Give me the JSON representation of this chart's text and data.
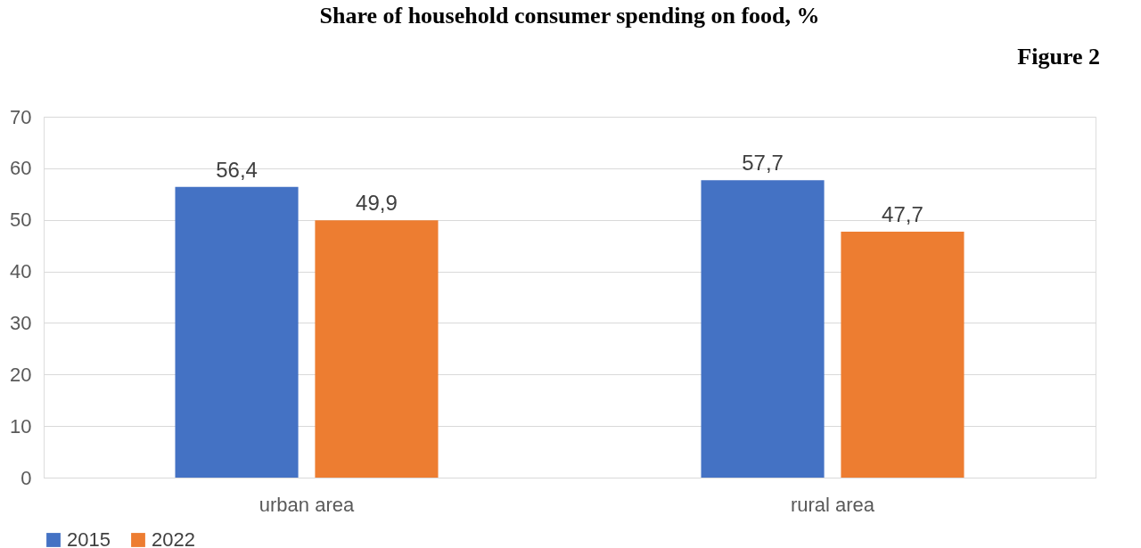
{
  "chart_data": {
    "type": "bar",
    "title": "Share of household consumer spending on food, %",
    "annotations": [
      "Figure 2"
    ],
    "categories": [
      "urban area",
      "rural area"
    ],
    "series": [
      {
        "name": "2015",
        "color": "#4472c4",
        "values": [
          56.4,
          57.7
        ],
        "value_labels": [
          "56,4",
          "57,7"
        ]
      },
      {
        "name": "2022",
        "color": "#ed7d31",
        "values": [
          49.9,
          47.7
        ],
        "value_labels": [
          "49,9",
          "47,7"
        ]
      }
    ],
    "ylim": [
      0,
      70
    ],
    "yticks": [
      0,
      10,
      20,
      30,
      40,
      50,
      60,
      70
    ],
    "grid": "y",
    "legend": "bottom"
  }
}
